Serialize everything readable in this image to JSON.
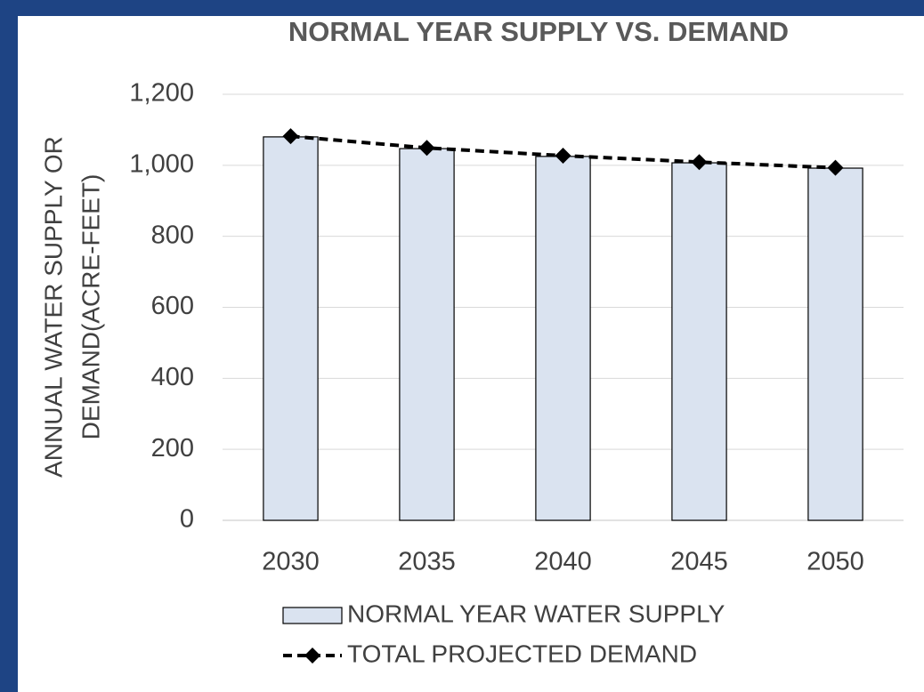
{
  "chart_data": {
    "type": "bar",
    "title": "NORMAL YEAR SUPPLY VS. DEMAND",
    "ylabel": [
      "ANNUAL WATER SUPPLY OR",
      "DEMAND(ACRE-FEET)"
    ],
    "categories": [
      "2030",
      "2035",
      "2040",
      "2045",
      "2050"
    ],
    "series": [
      {
        "name": "NORMAL YEAR WATER SUPPLY",
        "type": "bar",
        "color": "#dae3f0",
        "values": [
          1080,
          1047,
          1025,
          1007,
          992
        ]
      },
      {
        "name": "TOTAL PROJECTED DEMAND",
        "type": "line",
        "color": "#000000",
        "values": [
          1082,
          1049,
          1027,
          1009,
          993
        ]
      }
    ],
    "ylim": [
      0,
      1200
    ],
    "yticks": [
      0,
      200,
      400,
      600,
      800,
      {
        "value": 1000,
        "label": "1,000"
      },
      {
        "value": 1200,
        "label": "1,200"
      }
    ],
    "grid": true,
    "legend": "bottom"
  }
}
